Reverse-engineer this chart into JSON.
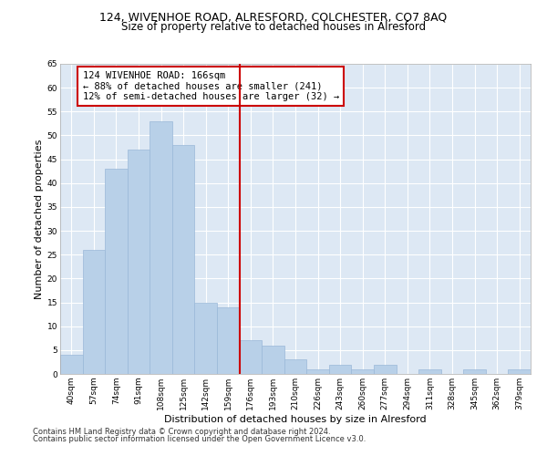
{
  "title1": "124, WIVENHOE ROAD, ALRESFORD, COLCHESTER, CO7 8AQ",
  "title2": "Size of property relative to detached houses in Alresford",
  "xlabel": "Distribution of detached houses by size in Alresford",
  "ylabel": "Number of detached properties",
  "categories": [
    "40sqm",
    "57sqm",
    "74sqm",
    "91sqm",
    "108sqm",
    "125sqm",
    "142sqm",
    "159sqm",
    "176sqm",
    "193sqm",
    "210sqm",
    "226sqm",
    "243sqm",
    "260sqm",
    "277sqm",
    "294sqm",
    "311sqm",
    "328sqm",
    "345sqm",
    "362sqm",
    "379sqm"
  ],
  "values": [
    4,
    26,
    43,
    47,
    53,
    48,
    15,
    14,
    7,
    6,
    3,
    1,
    2,
    1,
    2,
    0,
    1,
    0,
    1,
    0,
    1
  ],
  "bar_color": "#b8d0e8",
  "bar_edge_color": "#9ab8d8",
  "vline_color": "#cc0000",
  "annotation_text": "124 WIVENHOE ROAD: 166sqm\n← 88% of detached houses are smaller (241)\n12% of semi-detached houses are larger (32) →",
  "annotation_box_color": "#ffffff",
  "annotation_box_edgecolor": "#cc0000",
  "ylim": [
    0,
    65
  ],
  "yticks": [
    0,
    5,
    10,
    15,
    20,
    25,
    30,
    35,
    40,
    45,
    50,
    55,
    60,
    65
  ],
  "footnote1": "Contains HM Land Registry data © Crown copyright and database right 2024.",
  "footnote2": "Contains public sector information licensed under the Open Government Licence v3.0.",
  "bg_color": "#dde8f4",
  "title_fontsize": 9,
  "subtitle_fontsize": 8.5,
  "axis_label_fontsize": 8,
  "tick_fontsize": 6.5,
  "footnote_fontsize": 6,
  "annotation_fontsize": 7.5
}
